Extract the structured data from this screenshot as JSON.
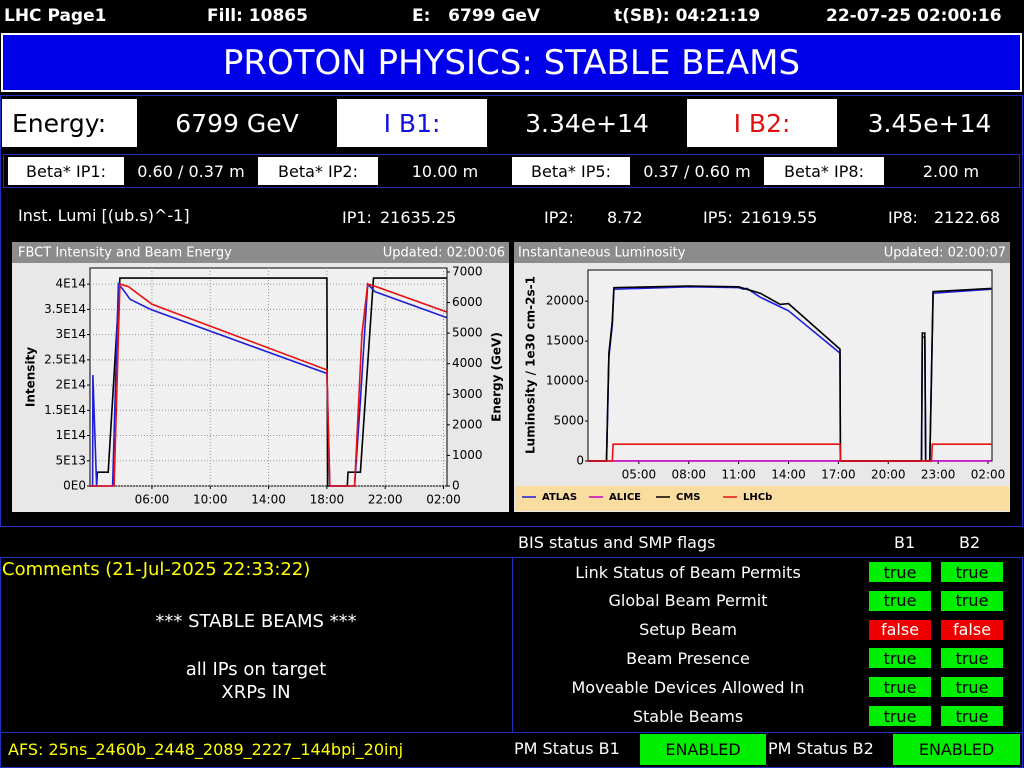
{
  "top_bar": {
    "page": "LHC Page1",
    "fill": "Fill: 10865",
    "energy": "E:   6799 GeV",
    "tsb": "t(SB): 04:21:19",
    "datetime": "22-07-25 02:00:16"
  },
  "title": "PROTON PHYSICS: STABLE BEAMS",
  "energy_row": [
    {
      "label": "Energy:",
      "value": "6799 GeV"
    },
    {
      "label": "I B1:",
      "value": "3.34e+14"
    },
    {
      "label": "I B2:",
      "value": "3.45e+14"
    }
  ],
  "beta_row": [
    {
      "label": "Beta* IP1:",
      "value": "0.60 / 0.37 m"
    },
    {
      "label": "Beta* IP2:",
      "value": "10.00 m"
    },
    {
      "label": "Beta* IP5:",
      "value": "0.37 / 0.60 m"
    },
    {
      "label": "Beta* IP8:",
      "value": "2.00 m"
    }
  ],
  "lumi": {
    "label": "Inst. Lumi [(ub.s)^-1]",
    "items": [
      {
        "label": "IP1:",
        "value": "21635.25"
      },
      {
        "label": "IP2:",
        "value": "8.72"
      },
      {
        "label": "IP5:",
        "value": "21619.55"
      },
      {
        "label": "IP8:",
        "value": "2122.68"
      }
    ]
  },
  "charts": [
    {
      "type": "line",
      "title": "FBCT Intensity and Beam Energy",
      "updated": "Updated: 02:00:06",
      "ylabel": "Intensity",
      "y2label": "Energy (GeV)",
      "grid": true,
      "xlim": [
        1.75,
        26.24
      ],
      "ylim": [
        0,
        432000000000000.0
      ],
      "y2lim": [
        0,
        7130
      ],
      "xticks": [
        {
          "value": 6,
          "label": "06:00"
        },
        {
          "value": 10,
          "label": "10:00"
        },
        {
          "value": 14,
          "label": "14:00"
        },
        {
          "value": 18,
          "label": "18:00"
        },
        {
          "value": 22,
          "label": "22:00"
        },
        {
          "value": 26,
          "label": "02:00"
        }
      ],
      "yticks": [
        {
          "value": 0,
          "label": "0E0"
        },
        {
          "value": 50000000000000.0,
          "label": "5E13"
        },
        {
          "value": 100000000000000.0,
          "label": "1E14"
        },
        {
          "value": 150000000000000.0,
          "label": "1.5E14"
        },
        {
          "value": 200000000000000.0,
          "label": "2E14"
        },
        {
          "value": 250000000000000.0,
          "label": "2.5E14"
        },
        {
          "value": 300000000000000.0,
          "label": "3E14"
        },
        {
          "value": 350000000000000.0,
          "label": "3.5E14"
        },
        {
          "value": 400000000000000.0,
          "label": "4E14"
        }
      ],
      "y2ticks": [
        0,
        1000,
        2000,
        3000,
        4000,
        5000,
        6000,
        7000
      ],
      "series": [
        {
          "color": "#000000",
          "axis": "y2",
          "x": [
            1.75,
            2.2,
            2.25,
            3.0,
            3.8,
            18.0,
            18.05,
            19.4,
            19.45,
            20.3,
            21.2,
            26.2
          ],
          "values": [
            0,
            0,
            450,
            450,
            6799,
            6799,
            0,
            0,
            450,
            450,
            6799,
            6799
          ]
        },
        {
          "color": "#1f1fd8",
          "x": [
            1.75,
            1.93,
            1.95,
            2.2,
            3.3,
            3.7,
            4.0,
            4.5,
            5.9,
            18.0,
            18.2,
            19.9,
            20.3,
            20.8,
            21.3,
            26.2
          ],
          "values": [
            0,
            0,
            220000000000000.0,
            0,
            0,
            400000000000000.0,
            390000000000000.0,
            370000000000000.0,
            350000000000000.0,
            223000000000000.0,
            0,
            0,
            170000000000000.0,
            400000000000000.0,
            385000000000000.0,
            334000000000000.0
          ]
        },
        {
          "color": "#e81010",
          "x": [
            1.75,
            3.4,
            3.8,
            4.4,
            6.0,
            18.0,
            18.2,
            19.9,
            20.4,
            20.8,
            21.4,
            26.2
          ],
          "values": [
            0,
            0,
            400000000000000.0,
            395000000000000.0,
            360000000000000.0,
            230000000000000.0,
            0,
            0,
            300000000000000.0,
            400000000000000.0,
            395000000000000.0,
            345000000000000.0
          ]
        }
      ]
    },
    {
      "type": "line",
      "title": "Instantaneous Luminosity",
      "updated": "Updated: 02:00:07",
      "ylabel": "Luminosity / 1e30 cm-2s-1",
      "grid": false,
      "xlim": [
        1.94,
        26.24
      ],
      "ylim": [
        0,
        23900
      ],
      "xticks": [
        {
          "value": 5,
          "label": "05:00"
        },
        {
          "value": 8,
          "label": "08:00"
        },
        {
          "value": 11,
          "label": "11:00"
        },
        {
          "value": 14,
          "label": "14:00"
        },
        {
          "value": 17,
          "label": "17:00"
        },
        {
          "value": 20,
          "label": "20:00"
        },
        {
          "value": 23,
          "label": "23:00"
        },
        {
          "value": 26,
          "label": "02:00"
        }
      ],
      "yticks": [
        0,
        5000,
        10000,
        15000,
        20000
      ],
      "series": [
        {
          "name": "ATLAS",
          "color": "#1f1fd8",
          "x": [
            1.94,
            3.05,
            3.2,
            3.4,
            3.5,
            8.0,
            11.0,
            11.3,
            11.5,
            12.3,
            14.0,
            17.1,
            17.12,
            22.0,
            22.05,
            22.2,
            22.25,
            22.5,
            22.7,
            26.2
          ],
          "values": [
            0,
            0,
            13000,
            17000,
            21500,
            21800,
            21700,
            21500,
            21600,
            20500,
            18800,
            13500,
            0,
            0,
            15500,
            15500,
            0,
            0,
            21000,
            21500
          ]
        },
        {
          "name": "ALICE",
          "color": "#c000c0",
          "x": [
            1.94,
            26.2
          ],
          "values": [
            9,
            9
          ]
        },
        {
          "name": "CMS",
          "color": "#000000",
          "x": [
            1.94,
            3.05,
            3.2,
            3.4,
            3.5,
            8.0,
            11.0,
            12.3,
            13.5,
            14.0,
            17.1,
            17.12,
            22.0,
            22.05,
            22.2,
            22.25,
            22.5,
            22.7,
            26.2
          ],
          "values": [
            0,
            0,
            13500,
            17500,
            21700,
            21900,
            21800,
            21000,
            19600,
            19700,
            14000,
            0,
            0,
            16000,
            16000,
            0,
            0,
            21200,
            21600
          ]
        },
        {
          "name": "LHCb",
          "color": "#e81010",
          "x": [
            1.94,
            3.4,
            3.45,
            17.1,
            17.12,
            22.6,
            22.65,
            26.2
          ],
          "values": [
            0,
            0,
            2100,
            2100,
            0,
            0,
            2100,
            2100
          ]
        }
      ]
    }
  ],
  "bis": {
    "title": "BIS status and SMP flags",
    "columns": [
      "B1",
      "B2"
    ],
    "rows": [
      {
        "label": "Link Status of Beam Permits",
        "b1": "true",
        "b2": "true"
      },
      {
        "label": "Global Beam Permit",
        "b1": "true",
        "b2": "true"
      },
      {
        "label": "Setup Beam",
        "b1": "false",
        "b2": "false"
      },
      {
        "label": "Beam Presence",
        "b1": "true",
        "b2": "true"
      },
      {
        "label": "Moveable Devices Allowed In",
        "b1": "true",
        "b2": "true"
      },
      {
        "label": "Stable Beams",
        "b1": "true",
        "b2": "true"
      }
    ]
  },
  "comments": {
    "title": "Comments (21-Jul-2025 22:33:22)",
    "lines": [
      "*** STABLE BEAMS ***",
      "all IPs on target",
      "XRPs IN"
    ]
  },
  "footer": {
    "afs": "AFS: 25ns_2460b_2448_2089_2227_144bpi_20inj",
    "pm": [
      {
        "label": "PM Status B1",
        "value": "ENABLED"
      },
      {
        "label": "PM Status B2",
        "value": "ENABLED"
      }
    ]
  }
}
